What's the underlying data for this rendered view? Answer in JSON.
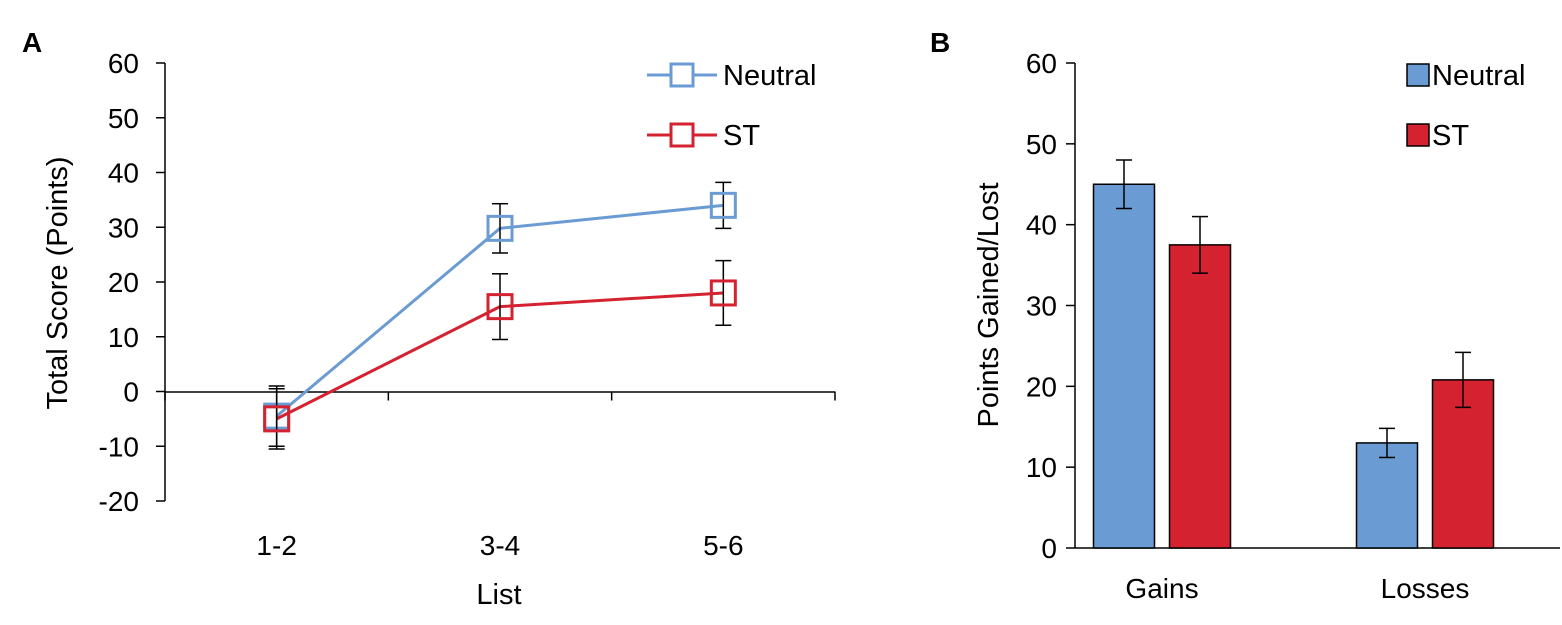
{
  "chart_data": [
    {
      "panel_label": "A",
      "type": "line",
      "title": "",
      "xlabel": "List",
      "ylabel": "Total Score (Points)",
      "ylim": [
        -20,
        60
      ],
      "yticks": [
        -20,
        -10,
        0,
        10,
        20,
        30,
        40,
        50,
        60
      ],
      "categories": [
        "1-2",
        "3-4",
        "5-6"
      ],
      "legend_position": "top-right",
      "series": [
        {
          "name": "Neutral",
          "color": "#6a9bd2",
          "values": [
            -4.5,
            29.8,
            34.0
          ],
          "errors": [
            5.5,
            4.5,
            4.2
          ]
        },
        {
          "name": "ST",
          "color": "#d42230",
          "values": [
            -5.0,
            15.5,
            18.0
          ],
          "errors": [
            5.5,
            6.0,
            5.9
          ]
        }
      ]
    },
    {
      "panel_label": "B",
      "type": "bar",
      "title": "",
      "xlabel": "",
      "ylabel": "Points Gained/Lost",
      "ylim": [
        0,
        60
      ],
      "yticks": [
        0,
        10,
        20,
        30,
        40,
        50,
        60
      ],
      "categories": [
        "Gains",
        "Losses"
      ],
      "legend_position": "top-right",
      "series": [
        {
          "name": "Neutral",
          "color": "#6a9bd2",
          "values": [
            45.0,
            13.0
          ],
          "errors": [
            3.0,
            1.8
          ]
        },
        {
          "name": "ST",
          "color": "#d42230",
          "values": [
            37.5,
            20.8
          ],
          "errors": [
            3.5,
            3.4
          ]
        }
      ]
    }
  ]
}
